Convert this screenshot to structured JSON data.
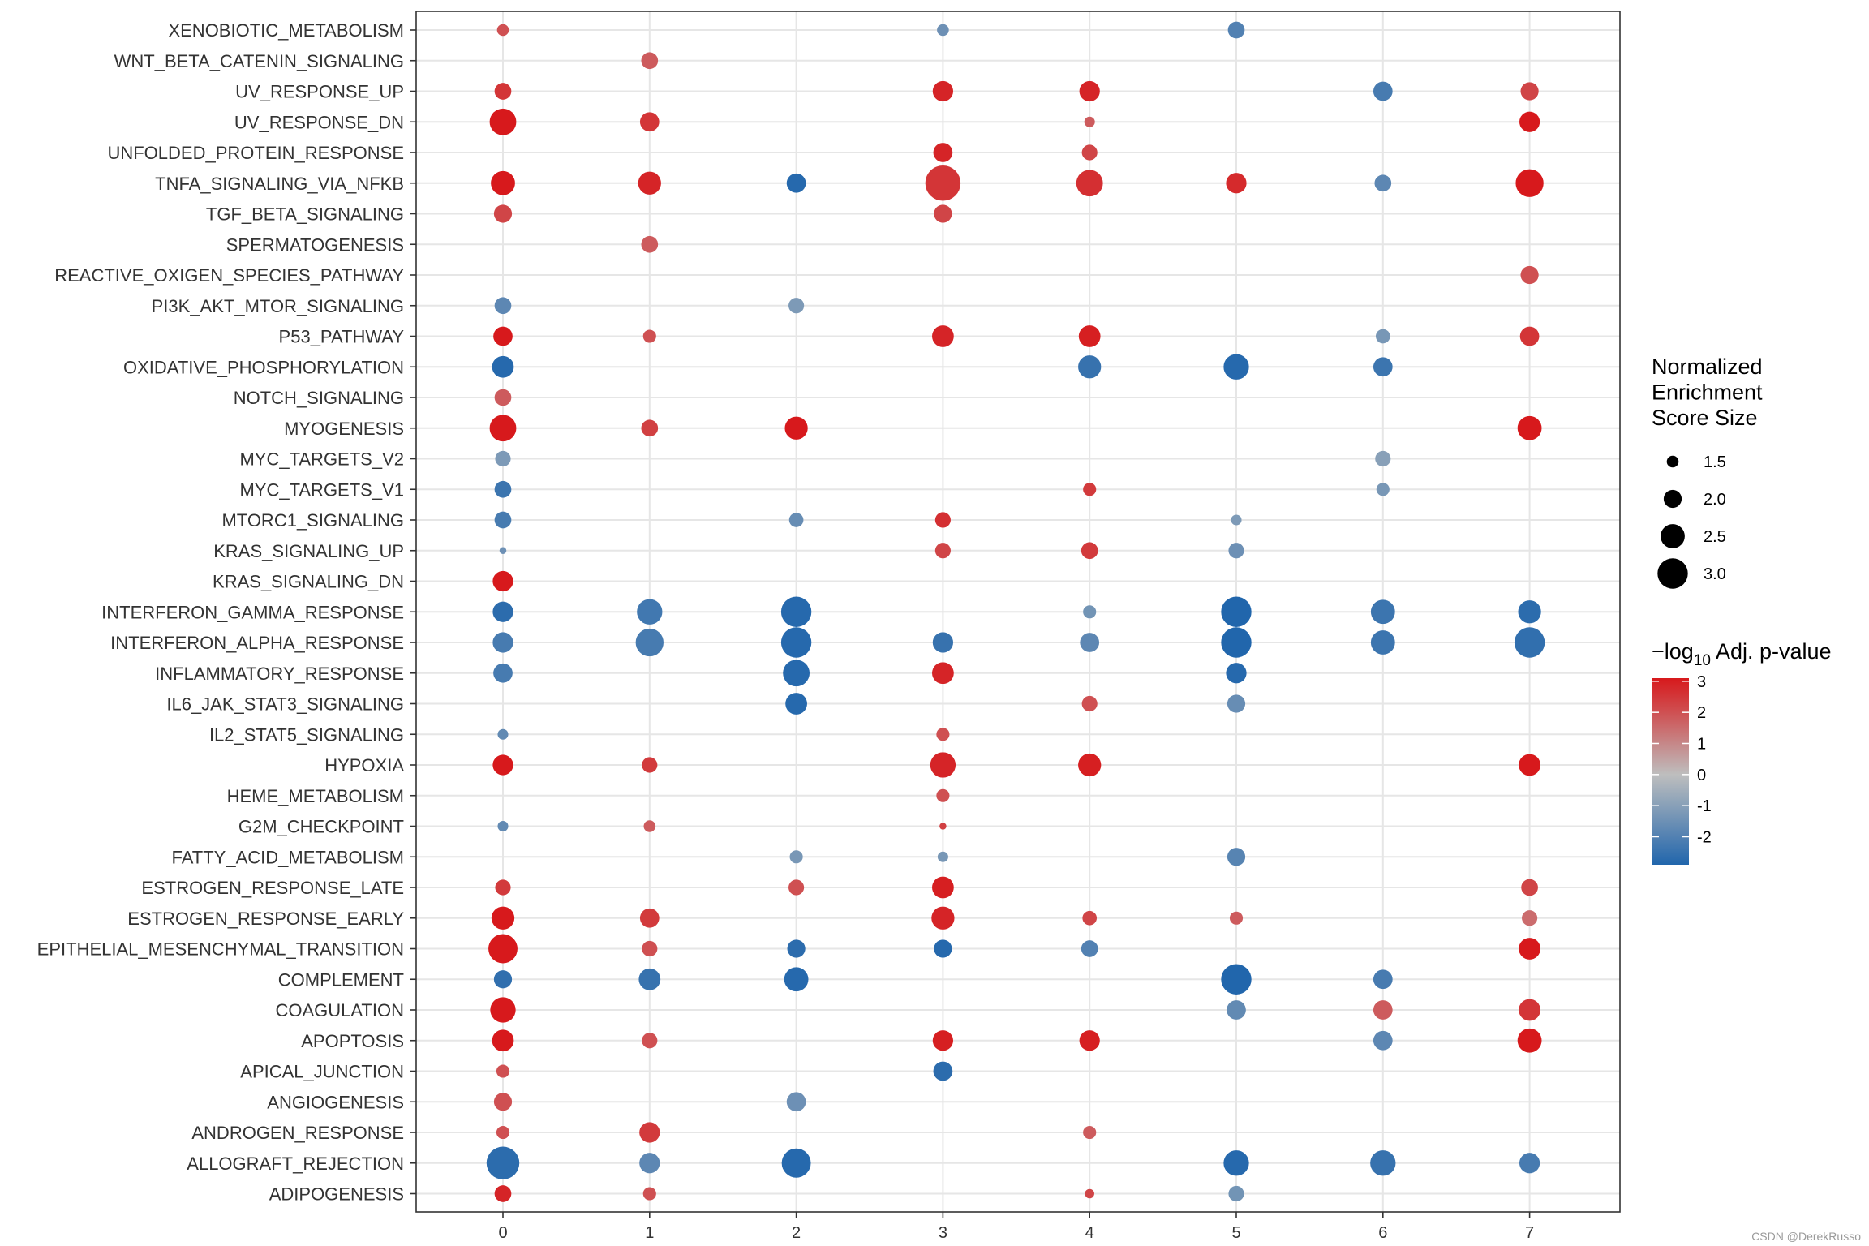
{
  "chart_data": {
    "type": "dotplot",
    "x_categories": [
      "0",
      "1",
      "2",
      "3",
      "4",
      "5",
      "6",
      "7"
    ],
    "y_categories": [
      "XENOBIOTIC_METABOLISM",
      "WNT_BETA_CATENIN_SIGNALING",
      "UV_RESPONSE_UP",
      "UV_RESPONSE_DN",
      "UNFOLDED_PROTEIN_RESPONSE",
      "TNFA_SIGNALING_VIA_NFKB",
      "TGF_BETA_SIGNALING",
      "SPERMATOGENESIS",
      "REACTIVE_OXIGEN_SPECIES_PATHWAY",
      "PI3K_AKT_MTOR_SIGNALING",
      "P53_PATHWAY",
      "OXIDATIVE_PHOSPHORYLATION",
      "NOTCH_SIGNALING",
      "MYOGENESIS",
      "MYC_TARGETS_V2",
      "MYC_TARGETS_V1",
      "MTORC1_SIGNALING",
      "KRAS_SIGNALING_UP",
      "KRAS_SIGNALING_DN",
      "INTERFERON_GAMMA_RESPONSE",
      "INTERFERON_ALPHA_RESPONSE",
      "INFLAMMATORY_RESPONSE",
      "IL6_JAK_STAT3_SIGNALING",
      "IL2_STAT5_SIGNALING",
      "HYPOXIA",
      "HEME_METABOLISM",
      "G2M_CHECKPOINT",
      "FATTY_ACID_METABOLISM",
      "ESTROGEN_RESPONSE_LATE",
      "ESTROGEN_RESPONSE_EARLY",
      "EPITHELIAL_MESENCHYMAL_TRANSITION",
      "COMPLEMENT",
      "COAGULATION",
      "APOPTOSIS",
      "APICAL_JUNCTION",
      "ANGIOGENESIS",
      "ANDROGEN_RESPONSE",
      "ALLOGRAFT_REJECTION",
      "ADIPOGENESIS"
    ],
    "size_legend": {
      "title": [
        "Normalized",
        "Enrichment",
        "Score Size"
      ],
      "values": [
        "1.5",
        "2.0",
        "2.5",
        "3.0"
      ]
    },
    "color_legend": {
      "title_prefix": "−log",
      "title_sub": "10",
      "title_suffix": " Adj. p-value",
      "ticks": [
        "3",
        "2",
        "1",
        "0",
        "-1",
        "-2"
      ],
      "tick_values": [
        3,
        2,
        1,
        0,
        -1,
        -2
      ],
      "min": -2.9,
      "max": 3.1,
      "low_color": "#2166ac",
      "mid_color": "#bebebe",
      "high_color": "#d7191c"
    },
    "points": [
      {
        "y": "XENOBIOTIC_METABOLISM",
        "x": "0",
        "size": 1.5,
        "color": 2.0
      },
      {
        "y": "XENOBIOTIC_METABOLISM",
        "x": "3",
        "size": 1.5,
        "color": -1.5
      },
      {
        "y": "XENOBIOTIC_METABOLISM",
        "x": "5",
        "size": 1.9,
        "color": -2.0
      },
      {
        "y": "WNT_BETA_CATENIN_SIGNALING",
        "x": "1",
        "size": 1.9,
        "color": 1.8
      },
      {
        "y": "UV_RESPONSE_UP",
        "x": "0",
        "size": 1.9,
        "color": 2.5
      },
      {
        "y": "UV_RESPONSE_UP",
        "x": "3",
        "size": 2.2,
        "color": 2.8
      },
      {
        "y": "UV_RESPONSE_UP",
        "x": "4",
        "size": 2.2,
        "color": 2.8
      },
      {
        "y": "UV_RESPONSE_UP",
        "x": "6",
        "size": 2.1,
        "color": -2.2
      },
      {
        "y": "UV_RESPONSE_UP",
        "x": "7",
        "size": 2.0,
        "color": 2.2
      },
      {
        "y": "UV_RESPONSE_DN",
        "x": "0",
        "size": 2.7,
        "color": 3.0
      },
      {
        "y": "UV_RESPONSE_DN",
        "x": "1",
        "size": 2.1,
        "color": 2.5
      },
      {
        "y": "UV_RESPONSE_DN",
        "x": "4",
        "size": 1.4,
        "color": 1.8
      },
      {
        "y": "UV_RESPONSE_DN",
        "x": "7",
        "size": 2.2,
        "color": 3.0
      },
      {
        "y": "UNFOLDED_PROTEIN_RESPONSE",
        "x": "3",
        "size": 2.1,
        "color": 2.8
      },
      {
        "y": "UNFOLDED_PROTEIN_RESPONSE",
        "x": "4",
        "size": 1.8,
        "color": 2.2
      },
      {
        "y": "TNFA_SIGNALING_VIA_NFKB",
        "x": "0",
        "size": 2.5,
        "color": 3.0
      },
      {
        "y": "TNFA_SIGNALING_VIA_NFKB",
        "x": "1",
        "size": 2.4,
        "color": 2.8
      },
      {
        "y": "TNFA_SIGNALING_VIA_NFKB",
        "x": "2",
        "size": 2.1,
        "color": -2.8
      },
      {
        "y": "TNFA_SIGNALING_VIA_NFKB",
        "x": "3",
        "size": 3.4,
        "color": 2.5
      },
      {
        "y": "TNFA_SIGNALING_VIA_NFKB",
        "x": "4",
        "size": 2.7,
        "color": 2.6
      },
      {
        "y": "TNFA_SIGNALING_VIA_NFKB",
        "x": "5",
        "size": 2.2,
        "color": 2.7
      },
      {
        "y": "TNFA_SIGNALING_VIA_NFKB",
        "x": "6",
        "size": 1.9,
        "color": -1.8
      },
      {
        "y": "TNFA_SIGNALING_VIA_NFKB",
        "x": "7",
        "size": 2.8,
        "color": 3.0
      },
      {
        "y": "TGF_BETA_SIGNALING",
        "x": "0",
        "size": 2.0,
        "color": 2.2
      },
      {
        "y": "TGF_BETA_SIGNALING",
        "x": "3",
        "size": 2.0,
        "color": 2.2
      },
      {
        "y": "SPERMATOGENESIS",
        "x": "1",
        "size": 1.9,
        "color": 1.8
      },
      {
        "y": "REACTIVE_OXIGEN_SPECIES_PATHWAY",
        "x": "7",
        "size": 2.0,
        "color": 2.0
      },
      {
        "y": "PI3K_AKT_MTOR_SIGNALING",
        "x": "0",
        "size": 1.9,
        "color": -1.8
      },
      {
        "y": "PI3K_AKT_MTOR_SIGNALING",
        "x": "2",
        "size": 1.8,
        "color": -1.2
      },
      {
        "y": "P53_PATHWAY",
        "x": "0",
        "size": 2.1,
        "color": 3.0
      },
      {
        "y": "P53_PATHWAY",
        "x": "1",
        "size": 1.6,
        "color": 2.0
      },
      {
        "y": "P53_PATHWAY",
        "x": "3",
        "size": 2.3,
        "color": 2.8
      },
      {
        "y": "P53_PATHWAY",
        "x": "4",
        "size": 2.3,
        "color": 2.9
      },
      {
        "y": "P53_PATHWAY",
        "x": "6",
        "size": 1.7,
        "color": -1.3
      },
      {
        "y": "P53_PATHWAY",
        "x": "7",
        "size": 2.1,
        "color": 2.5
      },
      {
        "y": "OXIDATIVE_PHOSPHORYLATION",
        "x": "0",
        "size": 2.3,
        "color": -2.8
      },
      {
        "y": "OXIDATIVE_PHOSPHORYLATION",
        "x": "4",
        "size": 2.4,
        "color": -2.5
      },
      {
        "y": "OXIDATIVE_PHOSPHORYLATION",
        "x": "5",
        "size": 2.6,
        "color": -2.8
      },
      {
        "y": "OXIDATIVE_PHOSPHORYLATION",
        "x": "6",
        "size": 2.1,
        "color": -2.4
      },
      {
        "y": "NOTCH_SIGNALING",
        "x": "0",
        "size": 1.9,
        "color": 1.8
      },
      {
        "y": "MYOGENESIS",
        "x": "0",
        "size": 2.7,
        "color": 3.0
      },
      {
        "y": "MYOGENESIS",
        "x": "1",
        "size": 1.9,
        "color": 2.3
      },
      {
        "y": "MYOGENESIS",
        "x": "2",
        "size": 2.4,
        "color": 3.0
      },
      {
        "y": "MYOGENESIS",
        "x": "7",
        "size": 2.5,
        "color": 3.0
      },
      {
        "y": "MYC_TARGETS_V2",
        "x": "0",
        "size": 1.8,
        "color": -1.2
      },
      {
        "y": "MYC_TARGETS_V2",
        "x": "6",
        "size": 1.8,
        "color": -1.0
      },
      {
        "y": "MYC_TARGETS_V1",
        "x": "0",
        "size": 1.9,
        "color": -2.4
      },
      {
        "y": "MYC_TARGETS_V1",
        "x": "4",
        "size": 1.6,
        "color": 2.4
      },
      {
        "y": "MYC_TARGETS_V1",
        "x": "6",
        "size": 1.6,
        "color": -1.3
      },
      {
        "y": "MTORC1_SIGNALING",
        "x": "0",
        "size": 1.9,
        "color": -2.2
      },
      {
        "y": "MTORC1_SIGNALING",
        "x": "2",
        "size": 1.7,
        "color": -1.6
      },
      {
        "y": "MTORC1_SIGNALING",
        "x": "3",
        "size": 1.8,
        "color": 2.6
      },
      {
        "y": "MTORC1_SIGNALING",
        "x": "5",
        "size": 1.4,
        "color": -1.2
      },
      {
        "y": "KRAS_SIGNALING_UP",
        "x": "0",
        "size": 1.1,
        "color": -1.5
      },
      {
        "y": "KRAS_SIGNALING_UP",
        "x": "3",
        "size": 1.8,
        "color": 2.2
      },
      {
        "y": "KRAS_SIGNALING_UP",
        "x": "4",
        "size": 1.9,
        "color": 2.4
      },
      {
        "y": "KRAS_SIGNALING_UP",
        "x": "5",
        "size": 1.8,
        "color": -1.5
      },
      {
        "y": "KRAS_SIGNALING_DN",
        "x": "0",
        "size": 2.2,
        "color": 3.0
      },
      {
        "y": "INTERFERON_GAMMA_RESPONSE",
        "x": "0",
        "size": 2.2,
        "color": -2.7
      },
      {
        "y": "INTERFERON_GAMMA_RESPONSE",
        "x": "1",
        "size": 2.6,
        "color": -2.3
      },
      {
        "y": "INTERFERON_GAMMA_RESPONSE",
        "x": "2",
        "size": 3.0,
        "color": -2.8
      },
      {
        "y": "INTERFERON_GAMMA_RESPONSE",
        "x": "4",
        "size": 1.6,
        "color": -1.4
      },
      {
        "y": "INTERFERON_GAMMA_RESPONSE",
        "x": "5",
        "size": 3.0,
        "color": -2.9
      },
      {
        "y": "INTERFERON_GAMMA_RESPONSE",
        "x": "6",
        "size": 2.5,
        "color": -2.4
      },
      {
        "y": "INTERFERON_GAMMA_RESPONSE",
        "x": "7",
        "size": 2.4,
        "color": -2.7
      },
      {
        "y": "INTERFERON_ALPHA_RESPONSE",
        "x": "0",
        "size": 2.2,
        "color": -2.2
      },
      {
        "y": "INTERFERON_ALPHA_RESPONSE",
        "x": "1",
        "size": 2.8,
        "color": -2.2
      },
      {
        "y": "INTERFERON_ALPHA_RESPONSE",
        "x": "2",
        "size": 3.0,
        "color": -2.8
      },
      {
        "y": "INTERFERON_ALPHA_RESPONSE",
        "x": "3",
        "size": 2.2,
        "color": -2.5
      },
      {
        "y": "INTERFERON_ALPHA_RESPONSE",
        "x": "4",
        "size": 2.1,
        "color": -1.8
      },
      {
        "y": "INTERFERON_ALPHA_RESPONSE",
        "x": "5",
        "size": 3.0,
        "color": -2.9
      },
      {
        "y": "INTERFERON_ALPHA_RESPONSE",
        "x": "6",
        "size": 2.5,
        "color": -2.4
      },
      {
        "y": "INTERFERON_ALPHA_RESPONSE",
        "x": "7",
        "size": 3.0,
        "color": -2.6
      },
      {
        "y": "INFLAMMATORY_RESPONSE",
        "x": "0",
        "size": 2.1,
        "color": -2.2
      },
      {
        "y": "INFLAMMATORY_RESPONSE",
        "x": "2",
        "size": 2.7,
        "color": -2.8
      },
      {
        "y": "INFLAMMATORY_RESPONSE",
        "x": "3",
        "size": 2.3,
        "color": 2.8
      },
      {
        "y": "INFLAMMATORY_RESPONSE",
        "x": "5",
        "size": 2.2,
        "color": -2.8
      },
      {
        "y": "IL6_JAK_STAT3_SIGNALING",
        "x": "2",
        "size": 2.3,
        "color": -2.8
      },
      {
        "y": "IL6_JAK_STAT3_SIGNALING",
        "x": "4",
        "size": 1.8,
        "color": 2.0
      },
      {
        "y": "IL6_JAK_STAT3_SIGNALING",
        "x": "5",
        "size": 2.0,
        "color": -1.6
      },
      {
        "y": "IL2_STAT5_SIGNALING",
        "x": "0",
        "size": 1.4,
        "color": -1.7
      },
      {
        "y": "IL2_STAT5_SIGNALING",
        "x": "3",
        "size": 1.6,
        "color": 2.0
      },
      {
        "y": "HYPOXIA",
        "x": "0",
        "size": 2.2,
        "color": 3.0
      },
      {
        "y": "HYPOXIA",
        "x": "1",
        "size": 1.8,
        "color": 2.4
      },
      {
        "y": "HYPOXIA",
        "x": "3",
        "size": 2.6,
        "color": 2.8
      },
      {
        "y": "HYPOXIA",
        "x": "4",
        "size": 2.4,
        "color": 2.9
      },
      {
        "y": "HYPOXIA",
        "x": "7",
        "size": 2.3,
        "color": 3.0
      },
      {
        "y": "HEME_METABOLISM",
        "x": "3",
        "size": 1.6,
        "color": 2.0
      },
      {
        "y": "G2M_CHECKPOINT",
        "x": "0",
        "size": 1.4,
        "color": -1.7
      },
      {
        "y": "G2M_CHECKPOINT",
        "x": "1",
        "size": 1.5,
        "color": 1.8
      },
      {
        "y": "G2M_CHECKPOINT",
        "x": "3",
        "size": 1.1,
        "color": 2.3
      },
      {
        "y": "FATTY_ACID_METABOLISM",
        "x": "2",
        "size": 1.6,
        "color": -1.3
      },
      {
        "y": "FATTY_ACID_METABOLISM",
        "x": "3",
        "size": 1.4,
        "color": -1.3
      },
      {
        "y": "FATTY_ACID_METABOLISM",
        "x": "5",
        "size": 2.0,
        "color": -1.9
      },
      {
        "y": "ESTROGEN_RESPONSE_LATE",
        "x": "0",
        "size": 1.8,
        "color": 2.4
      },
      {
        "y": "ESTROGEN_RESPONSE_LATE",
        "x": "2",
        "size": 1.8,
        "color": 2.0
      },
      {
        "y": "ESTROGEN_RESPONSE_LATE",
        "x": "3",
        "size": 2.3,
        "color": 2.9
      },
      {
        "y": "ESTROGEN_RESPONSE_LATE",
        "x": "7",
        "size": 1.9,
        "color": 2.2
      },
      {
        "y": "ESTROGEN_RESPONSE_EARLY",
        "x": "0",
        "size": 2.4,
        "color": 3.0
      },
      {
        "y": "ESTROGEN_RESPONSE_EARLY",
        "x": "1",
        "size": 2.1,
        "color": 2.4
      },
      {
        "y": "ESTROGEN_RESPONSE_EARLY",
        "x": "3",
        "size": 2.4,
        "color": 2.8
      },
      {
        "y": "ESTROGEN_RESPONSE_EARLY",
        "x": "4",
        "size": 1.7,
        "color": 2.2
      },
      {
        "y": "ESTROGEN_RESPONSE_EARLY",
        "x": "5",
        "size": 1.6,
        "color": 1.8
      },
      {
        "y": "ESTROGEN_RESPONSE_EARLY",
        "x": "7",
        "size": 1.8,
        "color": 1.5
      },
      {
        "y": "EPITHELIAL_MESENCHYMAL_TRANSITION",
        "x": "0",
        "size": 2.9,
        "color": 3.0
      },
      {
        "y": "EPITHELIAL_MESENCHYMAL_TRANSITION",
        "x": "1",
        "size": 1.8,
        "color": 2.0
      },
      {
        "y": "EPITHELIAL_MESENCHYMAL_TRANSITION",
        "x": "2",
        "size": 2.0,
        "color": -2.7
      },
      {
        "y": "EPITHELIAL_MESENCHYMAL_TRANSITION",
        "x": "3",
        "size": 2.0,
        "color": -2.8
      },
      {
        "y": "EPITHELIAL_MESENCHYMAL_TRANSITION",
        "x": "4",
        "size": 1.9,
        "color": -2.0
      },
      {
        "y": "EPITHELIAL_MESENCHYMAL_TRANSITION",
        "x": "7",
        "size": 2.3,
        "color": 3.0
      },
      {
        "y": "COMPLEMENT",
        "x": "0",
        "size": 2.0,
        "color": -2.6
      },
      {
        "y": "COMPLEMENT",
        "x": "1",
        "size": 2.3,
        "color": -2.5
      },
      {
        "y": "COMPLEMENT",
        "x": "2",
        "size": 2.5,
        "color": -2.8
      },
      {
        "y": "COMPLEMENT",
        "x": "5",
        "size": 3.0,
        "color": -2.9
      },
      {
        "y": "COMPLEMENT",
        "x": "6",
        "size": 2.1,
        "color": -2.2
      },
      {
        "y": "COAGULATION",
        "x": "0",
        "size": 2.6,
        "color": 3.0
      },
      {
        "y": "COAGULATION",
        "x": "5",
        "size": 2.1,
        "color": -1.7
      },
      {
        "y": "COAGULATION",
        "x": "6",
        "size": 2.1,
        "color": 1.8
      },
      {
        "y": "COAGULATION",
        "x": "7",
        "size": 2.3,
        "color": 2.5
      },
      {
        "y": "APOPTOSIS",
        "x": "0",
        "size": 2.3,
        "color": 3.0
      },
      {
        "y": "APOPTOSIS",
        "x": "1",
        "size": 1.8,
        "color": 2.0
      },
      {
        "y": "APOPTOSIS",
        "x": "3",
        "size": 2.2,
        "color": 2.9
      },
      {
        "y": "APOPTOSIS",
        "x": "4",
        "size": 2.2,
        "color": 2.9
      },
      {
        "y": "APOPTOSIS",
        "x": "6",
        "size": 2.1,
        "color": -1.8
      },
      {
        "y": "APOPTOSIS",
        "x": "7",
        "size": 2.5,
        "color": 3.0
      },
      {
        "y": "APICAL_JUNCTION",
        "x": "0",
        "size": 1.6,
        "color": 2.0
      },
      {
        "y": "APICAL_JUNCTION",
        "x": "3",
        "size": 2.1,
        "color": -2.7
      },
      {
        "y": "ANGIOGENESIS",
        "x": "0",
        "size": 2.0,
        "color": 2.0
      },
      {
        "y": "ANGIOGENESIS",
        "x": "2",
        "size": 2.1,
        "color": -1.5
      },
      {
        "y": "ANDROGEN_RESPONSE",
        "x": "0",
        "size": 1.6,
        "color": 2.0
      },
      {
        "y": "ANDROGEN_RESPONSE",
        "x": "1",
        "size": 2.2,
        "color": 2.4
      },
      {
        "y": "ANDROGEN_RESPONSE",
        "x": "4",
        "size": 1.6,
        "color": 1.8
      },
      {
        "y": "ALLOGRAFT_REJECTION",
        "x": "0",
        "size": 3.2,
        "color": -2.7
      },
      {
        "y": "ALLOGRAFT_REJECTION",
        "x": "1",
        "size": 2.2,
        "color": -1.8
      },
      {
        "y": "ALLOGRAFT_REJECTION",
        "x": "2",
        "size": 2.9,
        "color": -2.8
      },
      {
        "y": "ALLOGRAFT_REJECTION",
        "x": "5",
        "size": 2.6,
        "color": -2.8
      },
      {
        "y": "ALLOGRAFT_REJECTION",
        "x": "6",
        "size": 2.6,
        "color": -2.5
      },
      {
        "y": "ALLOGRAFT_REJECTION",
        "x": "7",
        "size": 2.2,
        "color": -2.2
      },
      {
        "y": "ADIPOGENESIS",
        "x": "0",
        "size": 1.9,
        "color": 2.8
      },
      {
        "y": "ADIPOGENESIS",
        "x": "1",
        "size": 1.6,
        "color": 2.0
      },
      {
        "y": "ADIPOGENESIS",
        "x": "4",
        "size": 1.3,
        "color": 2.2
      },
      {
        "y": "ADIPOGENESIS",
        "x": "5",
        "size": 1.8,
        "color": -1.4
      }
    ]
  },
  "watermark": "CSDN @DerekRusso"
}
